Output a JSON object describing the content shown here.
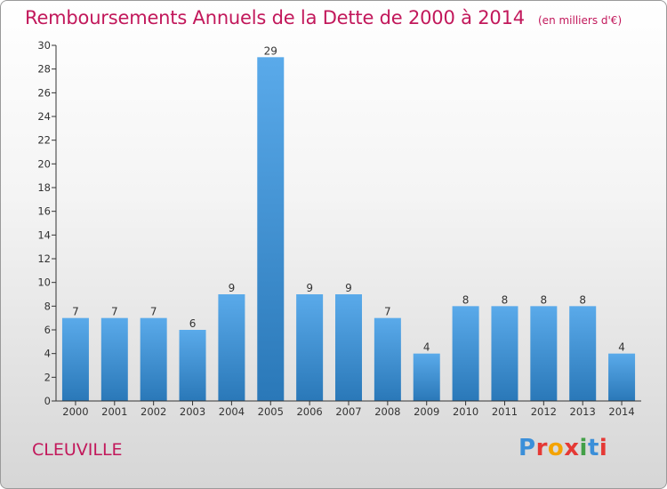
{
  "chart_data": {
    "type": "bar",
    "title": "Remboursements Annuels de la Dette de 2000 à 2014",
    "subtitle": "(en milliers d'€)",
    "categories": [
      "2000",
      "2001",
      "2002",
      "2003",
      "2004",
      "2005",
      "2006",
      "2007",
      "2008",
      "2009",
      "2010",
      "2011",
      "2012",
      "2013",
      "2014"
    ],
    "values": [
      7,
      7,
      7,
      6,
      9,
      29,
      9,
      9,
      7,
      4,
      8,
      8,
      8,
      8,
      4
    ],
    "ylim": [
      0,
      30
    ],
    "yticks": [
      0,
      2,
      4,
      6,
      8,
      10,
      12,
      14,
      16,
      18,
      20,
      22,
      24,
      26,
      28,
      30
    ],
    "grid": false,
    "bar_color_top": "#5aaaea",
    "bar_color_bottom": "#2a78b8"
  },
  "footer": {
    "commune": "CLEUVILLE",
    "logo": "Proxiti"
  },
  "colors": {
    "title": "#c2185b",
    "axis": "#333333"
  }
}
